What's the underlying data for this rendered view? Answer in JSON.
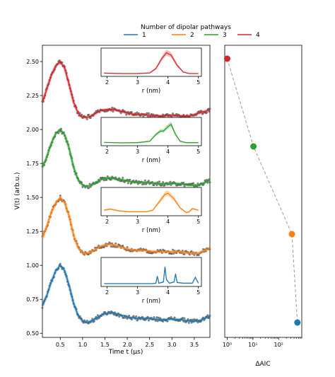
{
  "legend": {
    "title": "Number of dipolar pathways",
    "placement": "top-center",
    "entries": [
      {
        "label": "1",
        "color": "#1f77b4"
      },
      {
        "label": "2",
        "color": "#ff7f0e"
      },
      {
        "label": "3",
        "color": "#2ca02c"
      },
      {
        "label": "4",
        "color": "#d62728"
      }
    ]
  },
  "chart_data": [
    {
      "type": "line",
      "panel": "main",
      "title": "",
      "xlabel": "Time t (µs)",
      "ylabel": "V(t) (arb.u.)",
      "xlim": [
        0.1,
        3.85
      ],
      "ylim": [
        0.47,
        2.62
      ],
      "x_ticks": [
        0.5,
        1.0,
        1.5,
        2.0,
        2.5,
        3.0,
        3.5
      ],
      "y_ticks": [
        0.5,
        0.75,
        1.0,
        1.25,
        1.5,
        1.75,
        2.0,
        2.25,
        2.5
      ],
      "x": [
        0.1,
        0.2,
        0.3,
        0.4,
        0.5,
        0.6,
        0.7,
        0.8,
        0.9,
        1.0,
        1.1,
        1.2,
        1.3,
        1.4,
        1.5,
        1.6,
        1.7,
        1.8,
        1.9,
        2.0,
        2.2,
        2.4,
        2.6,
        2.8,
        3.0,
        3.2,
        3.4,
        3.6,
        3.8,
        3.85
      ],
      "series": [
        {
          "name": "1",
          "color": "#1f77b4",
          "values": [
            0.7,
            0.78,
            0.88,
            0.96,
            1.0,
            0.96,
            0.85,
            0.72,
            0.63,
            0.59,
            0.58,
            0.59,
            0.61,
            0.63,
            0.645,
            0.65,
            0.648,
            0.64,
            0.63,
            0.62,
            0.61,
            0.61,
            0.605,
            0.6,
            0.605,
            0.6,
            0.59,
            0.59,
            0.62,
            0.625
          ]
        },
        {
          "name": "2",
          "color": "#ff7f0e",
          "values": [
            1.2,
            1.29,
            1.39,
            1.46,
            1.5,
            1.46,
            1.36,
            1.22,
            1.13,
            1.09,
            1.09,
            1.1,
            1.12,
            1.14,
            1.15,
            1.155,
            1.15,
            1.14,
            1.13,
            1.12,
            1.11,
            1.11,
            1.1,
            1.1,
            1.1,
            1.1,
            1.09,
            1.09,
            1.12,
            1.125
          ]
        },
        {
          "name": "3",
          "color": "#2ca02c",
          "values": [
            1.72,
            1.8,
            1.9,
            1.97,
            2.0,
            1.96,
            1.86,
            1.72,
            1.63,
            1.59,
            1.58,
            1.59,
            1.61,
            1.63,
            1.64,
            1.645,
            1.64,
            1.635,
            1.63,
            1.62,
            1.61,
            1.61,
            1.605,
            1.6,
            1.605,
            1.6,
            1.59,
            1.59,
            1.62,
            1.625
          ]
        },
        {
          "name": "4",
          "color": "#d62728",
          "values": [
            2.2,
            2.3,
            2.4,
            2.47,
            2.5,
            2.45,
            2.33,
            2.2,
            2.12,
            2.09,
            2.09,
            2.1,
            2.12,
            2.14,
            2.145,
            2.15,
            2.145,
            2.14,
            2.13,
            2.12,
            2.11,
            2.11,
            2.1,
            2.1,
            2.105,
            2.1,
            2.1,
            2.12,
            2.14,
            2.145
          ]
        }
      ]
    },
    {
      "type": "line",
      "panel": "inset-4",
      "xlabel": "r (nm)",
      "xlim": [
        1.8,
        5.1
      ],
      "x_ticks": [
        2,
        3,
        4,
        5
      ],
      "x": [
        1.9,
        2.5,
        3.0,
        3.4,
        3.6,
        3.8,
        3.95,
        4.1,
        4.3,
        4.5,
        4.7,
        5.0
      ],
      "series": [
        {
          "name": "4",
          "color": "#d62728",
          "values": [
            0.05,
            0.03,
            0.03,
            0.06,
            0.25,
            0.7,
            0.95,
            0.85,
            0.4,
            0.1,
            0.03,
            0.03
          ]
        }
      ]
    },
    {
      "type": "line",
      "panel": "inset-3",
      "xlabel": "r (nm)",
      "xlim": [
        1.8,
        5.1
      ],
      "x_ticks": [
        2,
        3,
        4,
        5
      ],
      "x": [
        1.9,
        2.5,
        3.0,
        3.4,
        3.6,
        3.75,
        3.85,
        4.0,
        4.1,
        4.25,
        4.4,
        4.6,
        5.0
      ],
      "series": [
        {
          "name": "3",
          "color": "#2ca02c",
          "values": [
            0.05,
            0.03,
            0.04,
            0.1,
            0.4,
            0.55,
            0.55,
            0.75,
            0.85,
            0.4,
            0.1,
            0.04,
            0.04
          ]
        }
      ]
    },
    {
      "type": "line",
      "panel": "inset-2",
      "xlabel": "r (nm)",
      "xlim": [
        1.8,
        5.1
      ],
      "x_ticks": [
        2,
        3,
        4,
        5
      ],
      "x": [
        1.9,
        2.1,
        2.4,
        2.7,
        3.0,
        3.3,
        3.5,
        3.7,
        3.9,
        4.0,
        4.2,
        4.4,
        4.6,
        4.7,
        4.8,
        5.0
      ],
      "series": [
        {
          "name": "2",
          "color": "#ff7f0e",
          "values": [
            0.15,
            0.2,
            0.12,
            0.08,
            0.08,
            0.08,
            0.15,
            0.5,
            0.85,
            0.9,
            0.65,
            0.25,
            0.05,
            0.08,
            0.22,
            0.15
          ]
        }
      ]
    },
    {
      "type": "line",
      "panel": "inset-1",
      "xlabel": "r (nm)",
      "xlim": [
        1.8,
        5.1
      ],
      "x_ticks": [
        2,
        3,
        4,
        5
      ],
      "x": [
        1.9,
        2.5,
        3.0,
        3.5,
        3.6,
        3.65,
        3.7,
        3.85,
        3.9,
        3.95,
        4.05,
        4.2,
        4.25,
        4.3,
        4.5,
        4.8,
        4.9,
        5.0
      ],
      "series": [
        {
          "name": "1",
          "color": "#1f77b4",
          "values": [
            0.03,
            0.03,
            0.03,
            0.03,
            0.05,
            0.35,
            0.05,
            0.1,
            0.75,
            0.2,
            0.05,
            0.1,
            0.45,
            0.08,
            0.05,
            0.05,
            0.3,
            0.05
          ]
        }
      ]
    },
    {
      "type": "scatter",
      "panel": "aic",
      "xlabel": "ΔAIC",
      "xscale": "log",
      "xlim": [
        0.8,
        800
      ],
      "x_ticks": [
        "10⁰",
        "10¹",
        "10²"
      ],
      "x_tick_values": [
        1,
        10,
        100
      ],
      "y_order": [
        "4",
        "3",
        "2",
        "1"
      ],
      "series": [
        {
          "name": "4",
          "color": "#d62728",
          "x": 1.0
        },
        {
          "name": "3",
          "color": "#2ca02c",
          "x": 10.5
        },
        {
          "name": "2",
          "color": "#ff7f0e",
          "x": 330
        },
        {
          "name": "1",
          "color": "#1f77b4",
          "x": 540
        }
      ]
    }
  ]
}
